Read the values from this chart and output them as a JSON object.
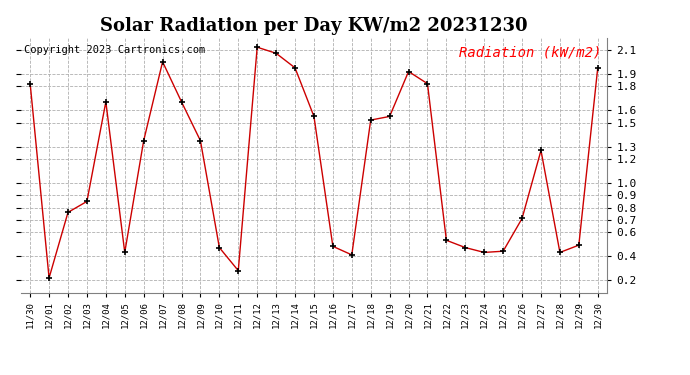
{
  "title": "Solar Radiation per Day KW/m2 20231230",
  "copyright": "Copyright 2023 Cartronics.com",
  "legend_label": "Radiation (kW/m2)",
  "dates": [
    "11/30",
    "12/01",
    "12/02",
    "12/03",
    "12/04",
    "12/05",
    "12/06",
    "12/07",
    "12/08",
    "12/09",
    "12/10",
    "12/11",
    "12/12",
    "12/13",
    "12/14",
    "12/15",
    "12/16",
    "12/17",
    "12/18",
    "12/19",
    "12/20",
    "12/21",
    "12/22",
    "12/23",
    "12/24",
    "12/25",
    "12/26",
    "12/27",
    "12/28",
    "12/29",
    "12/30"
  ],
  "values": [
    1.82,
    0.22,
    0.76,
    0.85,
    1.67,
    0.43,
    1.35,
    2.0,
    1.67,
    1.35,
    0.47,
    0.28,
    2.12,
    2.07,
    1.95,
    1.55,
    0.48,
    0.41,
    1.52,
    1.55,
    1.92,
    1.82,
    0.53,
    0.47,
    0.43,
    0.44,
    0.71,
    1.27,
    0.43,
    0.49,
    1.95
  ],
  "line_color": "#cc0000",
  "marker_color": "#000000",
  "grid_color": "#b0b0b0",
  "bg_color": "#ffffff",
  "title_fontsize": 13,
  "copyright_fontsize": 7.5,
  "legend_fontsize": 10,
  "ylim": [
    0.1,
    2.2
  ],
  "yticks": [
    0.2,
    0.4,
    0.6,
    0.7,
    0.8,
    0.9,
    1.0,
    1.2,
    1.3,
    1.5,
    1.6,
    1.8,
    1.9,
    2.1
  ],
  "ytick_labels": [
    "0.2",
    "0.4",
    "0.6",
    "0.7",
    "0.8",
    "0.9",
    "1.0",
    "1.2",
    "1.3",
    "1.5",
    "1.6",
    "1.8",
    "1.9",
    "2.1"
  ],
  "figsize": [
    6.9,
    3.75
  ],
  "dpi": 100
}
